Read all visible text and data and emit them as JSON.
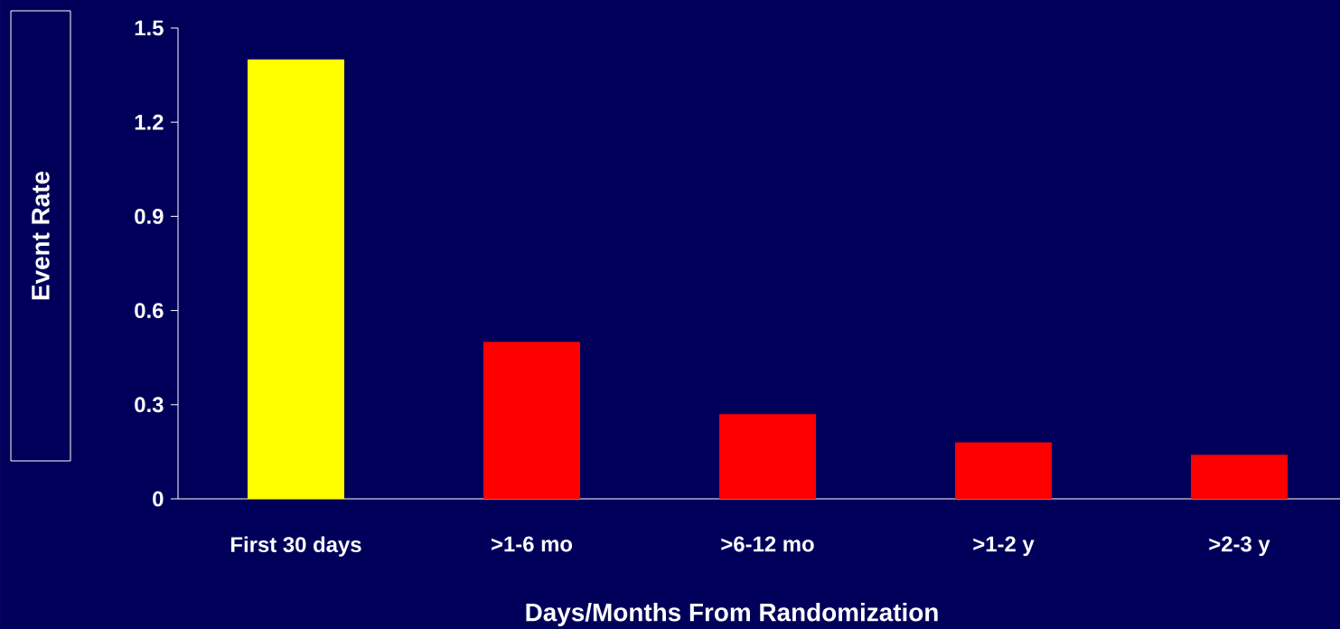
{
  "chart_data": {
    "type": "bar",
    "xlabel": "Days/Months From Randomization",
    "ylabel": "Event Rate",
    "categories": [
      "First 30 days",
      ">1-6 mo",
      ">6-12 mo",
      ">1-2 y",
      ">2-3 y"
    ],
    "values": [
      1.4,
      0.5,
      0.27,
      0.18,
      0.14
    ],
    "colors": [
      "#ffff00",
      "#ff0000",
      "#ff0000",
      "#ff0000",
      "#ff0000"
    ],
    "ylim": [
      0,
      1.5
    ],
    "yticks": [
      0,
      0.3,
      0.6,
      0.9,
      1.2,
      1.5
    ],
    "grid": false
  }
}
